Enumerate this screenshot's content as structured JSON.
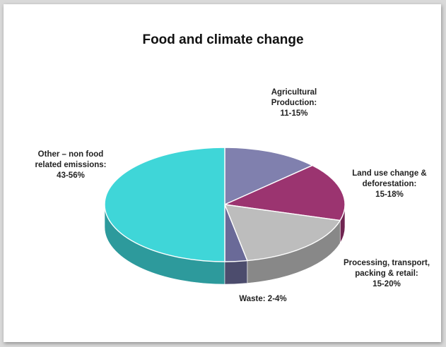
{
  "chart_data": {
    "type": "pie",
    "title": "Food and climate change",
    "slices": [
      {
        "label": [
          "Agricultural",
          "Production:",
          "11-15%"
        ],
        "range": "11-15%",
        "value": 13.0,
        "color": "#8080ae"
      },
      {
        "label": [
          "Land use change &",
          "deforestation:",
          "15-18%"
        ],
        "range": "15-18%",
        "value": 16.5,
        "color": "#9b3470"
      },
      {
        "label": [
          "Processing, transport,",
          "packing & retail:",
          "15-20%"
        ],
        "range": "15-20%",
        "value": 17.5,
        "color": "#bdbdbd"
      },
      {
        "label": [
          "Waste: 2-4%"
        ],
        "range": "2-4%",
        "value": 3.0,
        "color": "#6a6a98"
      },
      {
        "label": [
          "Other – non food",
          "related emissions:",
          "43-56%"
        ],
        "range": "43-56%",
        "value": 50.0,
        "color": "#3fd6d8"
      }
    ],
    "legend": "none",
    "style": "3d"
  }
}
